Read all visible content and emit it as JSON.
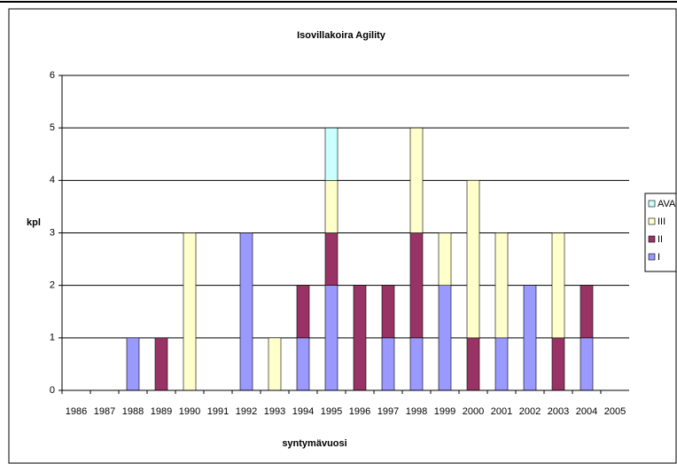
{
  "chart_data": {
    "type": "stacked_bar",
    "title": "Isovillakoira Agility",
    "x_label": "syntymävuosi",
    "y_label": "kpl",
    "categories": [
      "1986",
      "1987",
      "1988",
      "1989",
      "1990",
      "1991",
      "1992",
      "1993",
      "1994",
      "1995",
      "1996",
      "1997",
      "1998",
      "1999",
      "2000",
      "2001",
      "2002",
      "2003",
      "2004",
      "2005"
    ],
    "series": [
      {
        "name": "I",
        "color": "#9999ff",
        "values": [
          0,
          0,
          1,
          0,
          0,
          0,
          3,
          0,
          1,
          2,
          0,
          1,
          1,
          2,
          0,
          1,
          2,
          0,
          1,
          0
        ]
      },
      {
        "name": "II",
        "color": "#993366",
        "values": [
          0,
          0,
          0,
          1,
          0,
          0,
          0,
          0,
          1,
          1,
          2,
          1,
          2,
          0,
          1,
          0,
          0,
          1,
          1,
          0
        ]
      },
      {
        "name": "III",
        "color": "#ffffcc",
        "values": [
          0,
          0,
          0,
          0,
          3,
          0,
          0,
          1,
          0,
          1,
          0,
          0,
          2,
          1,
          3,
          2,
          0,
          2,
          0,
          0
        ]
      },
      {
        "name": "AVA",
        "color": "#ccffff",
        "values": [
          0,
          0,
          0,
          0,
          0,
          0,
          0,
          0,
          0,
          1,
          0,
          0,
          0,
          0,
          0,
          0,
          0,
          0,
          0,
          0
        ]
      }
    ],
    "ylim": [
      0,
      6
    ],
    "yticks": [
      0,
      1,
      2,
      3,
      4,
      5,
      6
    ],
    "grid": true,
    "legend": "right"
  }
}
